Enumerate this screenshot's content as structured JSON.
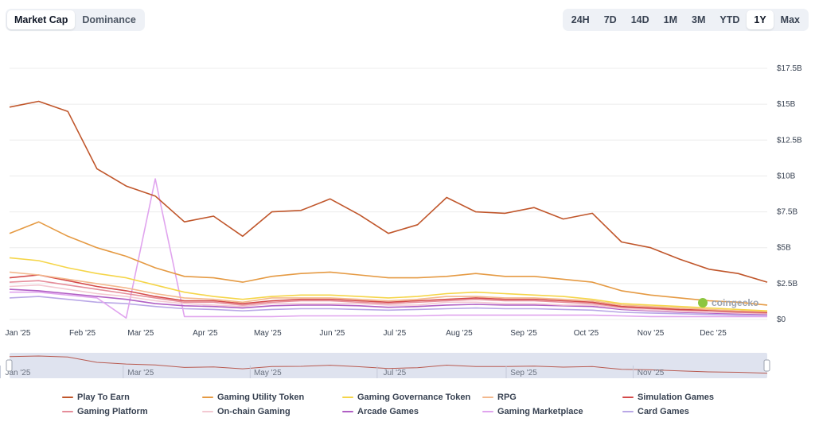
{
  "metric_tabs": [
    {
      "label": "Market Cap",
      "active": true
    },
    {
      "label": "Dominance",
      "active": false
    }
  ],
  "time_ranges": [
    {
      "label": "24H",
      "active": false
    },
    {
      "label": "7D",
      "active": false
    },
    {
      "label": "14D",
      "active": false
    },
    {
      "label": "1M",
      "active": false
    },
    {
      "label": "3M",
      "active": false
    },
    {
      "label": "YTD",
      "active": false
    },
    {
      "label": "1Y",
      "active": true
    },
    {
      "label": "Max",
      "active": false
    }
  ],
  "watermark": "coingecko",
  "colors": {
    "grid": "#ececec",
    "navigator_bg": "#dfe3ef"
  },
  "chart_data": {
    "type": "line",
    "title": "",
    "xlabel": "",
    "ylabel": "",
    "x": [
      "2024-12-28",
      "2025-01-11",
      "2025-01-25",
      "2025-02-08",
      "2025-02-22",
      "2025-03-08",
      "2025-03-22",
      "2025-04-05",
      "2025-04-19",
      "2025-05-03",
      "2025-05-17",
      "2025-05-31",
      "2025-06-14",
      "2025-06-28",
      "2025-07-12",
      "2025-07-26",
      "2025-08-09",
      "2025-08-23",
      "2025-09-06",
      "2025-09-20",
      "2025-10-04",
      "2025-10-18",
      "2025-11-01",
      "2025-11-15",
      "2025-11-29",
      "2025-12-13",
      "2025-12-27"
    ],
    "ylim": [
      0,
      17.5
    ],
    "y_ticks": [
      0,
      2.5,
      5,
      7.5,
      10,
      12.5,
      15,
      17.5
    ],
    "y_tick_labels": [
      "$0",
      "$2.5B",
      "$5B",
      "$7.5B",
      "$10B",
      "$12.5B",
      "$15B",
      "$17.5B"
    ],
    "x_ticks": [
      "2025-01-01",
      "2025-02-01",
      "2025-03-01",
      "2025-04-01",
      "2025-05-01",
      "2025-06-01",
      "2025-07-01",
      "2025-08-01",
      "2025-09-01",
      "2025-10-01",
      "2025-11-01",
      "2025-12-01"
    ],
    "x_tick_labels": [
      "Jan '25",
      "Feb '25",
      "Mar '25",
      "Apr '25",
      "May '25",
      "Jun '25",
      "Jul '25",
      "Aug '25",
      "Sep '25",
      "Oct '25",
      "Nov '25",
      "Dec '25"
    ],
    "navigator_tick_labels": [
      "Jan '25",
      "Mar '25",
      "May '25",
      "Jul '25",
      "Sep '25",
      "Nov '25"
    ],
    "unit": "B USD",
    "grid": true,
    "legend": "bottom",
    "series": [
      {
        "name": "Play To Earn",
        "color": "#c0562b",
        "values": [
          14.8,
          15.2,
          14.5,
          10.5,
          9.3,
          8.6,
          6.8,
          7.2,
          5.8,
          7.5,
          7.6,
          8.4,
          7.3,
          6.0,
          6.6,
          8.5,
          7.5,
          7.4,
          7.8,
          7.0,
          7.4,
          5.4,
          5.0,
          4.2,
          3.5,
          3.2,
          2.6
        ]
      },
      {
        "name": "Gaming Utility Token",
        "color": "#e59a43",
        "values": [
          6.0,
          6.8,
          5.8,
          5.0,
          4.4,
          3.6,
          3.0,
          2.9,
          2.6,
          3.0,
          3.2,
          3.3,
          3.1,
          2.9,
          2.9,
          3.0,
          3.2,
          3.0,
          3.0,
          2.8,
          2.6,
          2.0,
          1.7,
          1.5,
          1.3,
          1.2,
          1.0
        ]
      },
      {
        "name": "Gaming Governance Token",
        "color": "#f5d548",
        "values": [
          4.3,
          4.1,
          3.6,
          3.2,
          2.9,
          2.4,
          1.9,
          1.6,
          1.4,
          1.6,
          1.7,
          1.7,
          1.6,
          1.5,
          1.6,
          1.8,
          1.9,
          1.8,
          1.7,
          1.6,
          1.4,
          1.1,
          1.0,
          0.9,
          0.8,
          0.7,
          0.6
        ]
      },
      {
        "name": "RPG",
        "color": "#f3b88d",
        "values": [
          3.3,
          3.1,
          2.8,
          2.5,
          2.2,
          1.8,
          1.5,
          1.4,
          1.2,
          1.5,
          1.5,
          1.5,
          1.4,
          1.3,
          1.4,
          1.6,
          1.6,
          1.5,
          1.5,
          1.4,
          1.3,
          1.0,
          0.9,
          0.8,
          0.7,
          0.6,
          0.55
        ]
      },
      {
        "name": "Simulation Games",
        "color": "#d44a4a",
        "values": [
          2.9,
          3.1,
          2.7,
          2.3,
          2.0,
          1.6,
          1.3,
          1.3,
          1.1,
          1.3,
          1.4,
          1.4,
          1.3,
          1.2,
          1.3,
          1.4,
          1.5,
          1.4,
          1.4,
          1.3,
          1.2,
          0.9,
          0.8,
          0.7,
          0.65,
          0.55,
          0.5
        ]
      },
      {
        "name": "Gaming Platform",
        "color": "#e58d9a",
        "values": [
          2.6,
          2.7,
          2.4,
          2.1,
          1.8,
          1.5,
          1.2,
          1.2,
          1.0,
          1.2,
          1.3,
          1.3,
          1.2,
          1.1,
          1.2,
          1.3,
          1.4,
          1.3,
          1.3,
          1.2,
          1.1,
          0.85,
          0.75,
          0.65,
          0.6,
          0.5,
          0.45
        ]
      },
      {
        "name": "On-chain Gaming",
        "color": "#f3c9d2",
        "values": [
          2.3,
          2.4,
          2.1,
          1.8,
          1.6,
          1.3,
          1.1,
          1.0,
          0.9,
          1.1,
          1.1,
          1.1,
          1.1,
          1.0,
          1.0,
          1.2,
          1.2,
          1.1,
          1.1,
          1.0,
          1.0,
          0.75,
          0.65,
          0.55,
          0.5,
          0.45,
          0.4
        ]
      },
      {
        "name": "Arcade Games",
        "color": "#b05fc4",
        "values": [
          2.1,
          2.0,
          1.8,
          1.6,
          1.4,
          1.1,
          0.95,
          0.9,
          0.8,
          0.95,
          1.0,
          1.0,
          0.95,
          0.85,
          0.9,
          1.0,
          1.05,
          1.0,
          1.0,
          0.95,
          0.9,
          0.7,
          0.6,
          0.5,
          0.45,
          0.4,
          0.35
        ]
      },
      {
        "name": "Gaming Marketplace",
        "color": "#e0a4ee",
        "values": [
          1.9,
          1.9,
          1.7,
          1.5,
          0.1,
          9.8,
          0.2,
          0.2,
          0.2,
          0.2,
          0.25,
          0.25,
          0.25,
          0.25,
          0.25,
          0.3,
          0.3,
          0.3,
          0.3,
          0.3,
          0.3,
          0.25,
          0.2,
          0.2,
          0.2,
          0.2,
          0.2
        ]
      },
      {
        "name": "Card Games",
        "color": "#b9a7e6",
        "values": [
          1.5,
          1.6,
          1.4,
          1.2,
          1.1,
          0.9,
          0.75,
          0.7,
          0.6,
          0.7,
          0.75,
          0.75,
          0.7,
          0.65,
          0.7,
          0.75,
          0.8,
          0.75,
          0.75,
          0.7,
          0.65,
          0.5,
          0.45,
          0.4,
          0.35,
          0.3,
          0.3
        ]
      }
    ]
  }
}
